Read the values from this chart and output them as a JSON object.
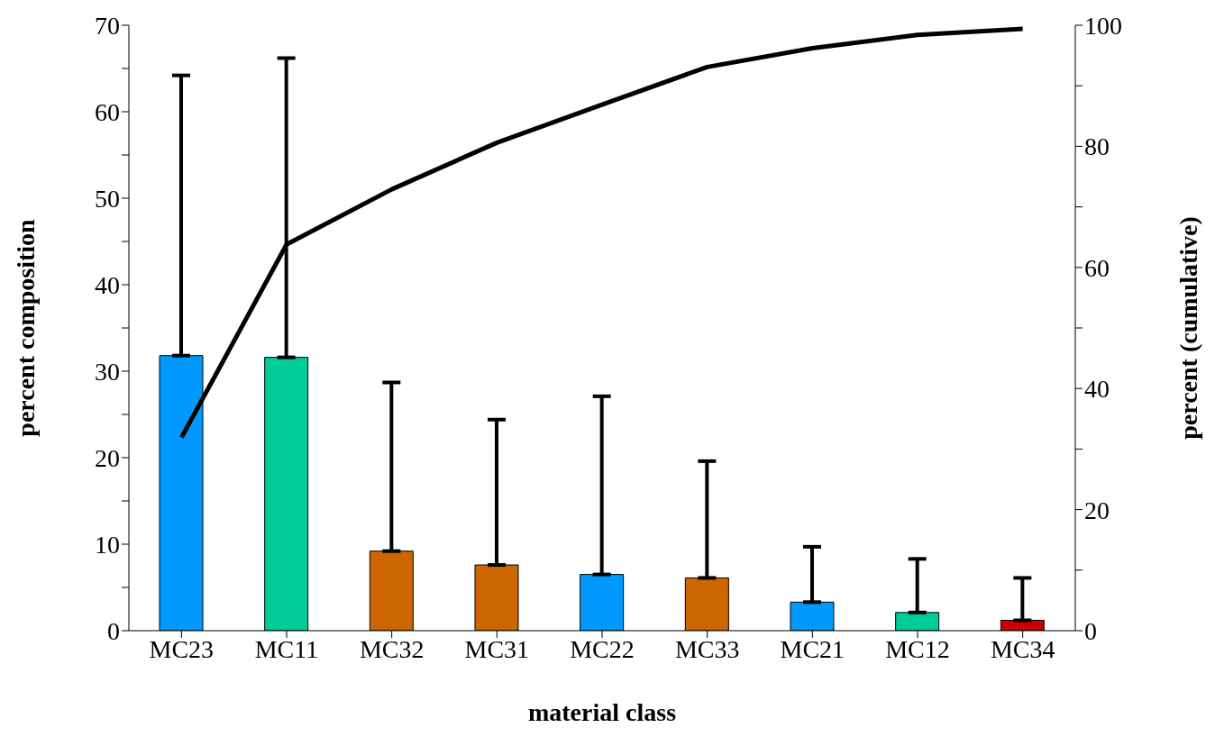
{
  "chart_data": {
    "type": "bar",
    "xlabel": "material class",
    "ylabel": "percent composition",
    "y2label": "percent (cumulative)",
    "categories": [
      "MC23",
      "MC11",
      "MC32",
      "MC31",
      "MC22",
      "MC33",
      "MC21",
      "MC12",
      "MC34"
    ],
    "series": [
      {
        "values": [
          31.8,
          31.6,
          9.2,
          7.6,
          6.5,
          6.1,
          3.3,
          2.1,
          1.2
        ],
        "colors": [
          "#0099ff",
          "#00cc99",
          "#cc6600",
          "#cc6600",
          "#0099ff",
          "#cc6600",
          "#0099ff",
          "#00cc99",
          "#cc0000"
        ],
        "errors": [
          [
            31.8,
            64.2
          ],
          [
            31.6,
            66.2
          ],
          [
            9.2,
            28.7
          ],
          [
            7.6,
            24.4
          ],
          [
            6.5,
            27.1
          ],
          [
            6.1,
            19.6
          ],
          [
            3.3,
            9.7
          ],
          [
            2.1,
            8.3
          ],
          [
            1.2,
            6.1
          ]
        ]
      },
      {
        "type": "line",
        "axis": "y2",
        "color": "#000000",
        "values": [
          31.9,
          63.8,
          72.9,
          80.6,
          86.9,
          93.1,
          96.2,
          98.4,
          99.4
        ]
      }
    ],
    "ylim": [
      0,
      70
    ],
    "yticks": [
      0,
      {
        "value": 5,
        "label": null
      },
      10,
      {
        "value": 15,
        "label": null
      },
      20,
      {
        "value": 25,
        "label": null
      },
      30,
      {
        "value": 35,
        "label": null
      },
      40,
      {
        "value": 45,
        "label": null
      },
      50,
      {
        "value": 55,
        "label": null
      },
      60,
      {
        "value": 65,
        "label": null
      },
      70
    ],
    "y2lim": [
      0,
      100
    ],
    "y2ticks": [
      0,
      {
        "value": 10,
        "label": null
      },
      20,
      {
        "value": 30,
        "label": null
      },
      40,
      {
        "value": 50,
        "label": null
      },
      60,
      {
        "value": 70,
        "label": null
      },
      80,
      {
        "value": 90,
        "label": null
      },
      100
    ],
    "grid": false,
    "legend": false,
    "marker": "none",
    "line_style": "solid"
  }
}
